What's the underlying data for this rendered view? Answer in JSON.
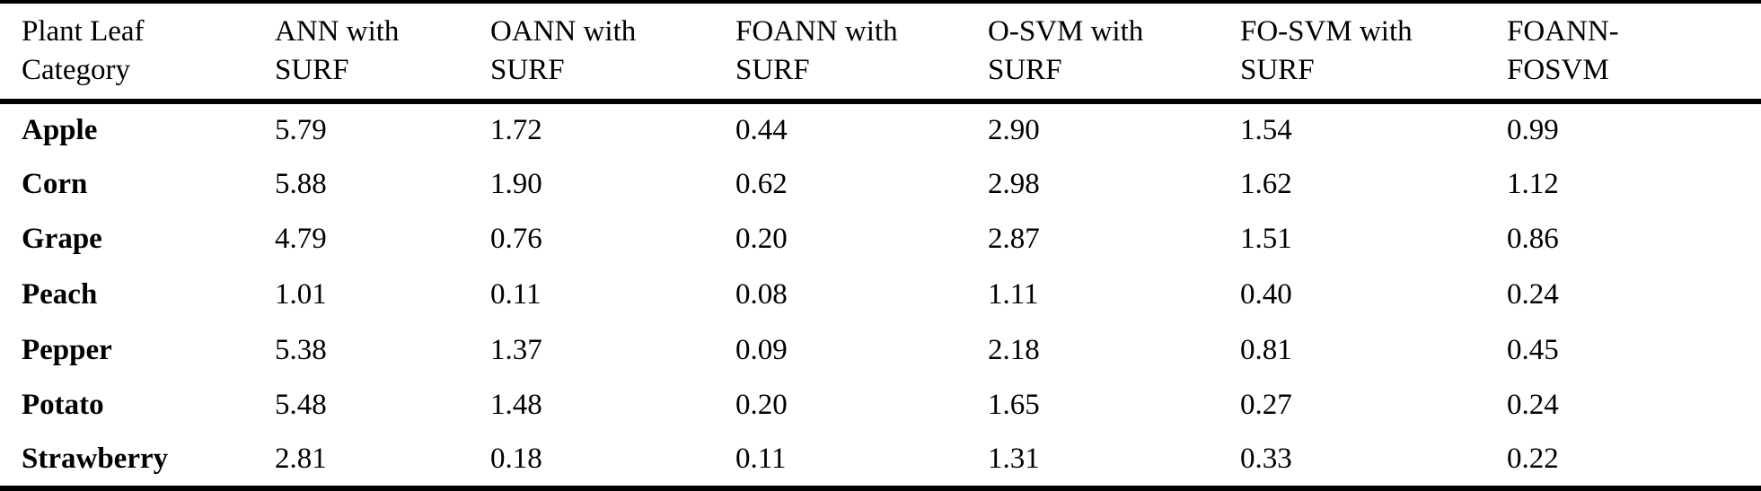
{
  "table": {
    "columns": [
      {
        "label": "Plant Leaf Category",
        "line1": "Plant Leaf",
        "line2": "Category"
      },
      {
        "label": "ANN with SURF",
        "line1": "ANN with",
        "line2": "SURF"
      },
      {
        "label": "OANN with SURF",
        "line1": "OANN with",
        "line2": "SURF"
      },
      {
        "label": "FOANN with SURF",
        "line1": "FOANN with",
        "line2": "SURF"
      },
      {
        "label": "O-SVM with SURF",
        "line1": "O-SVM with",
        "line2": "SURF"
      },
      {
        "label": "FO-SVM with SURF",
        "line1": "FO-SVM with",
        "line2": "SURF"
      },
      {
        "label": "FOANN-FOSVM",
        "line1": "FOANN-",
        "line2": "FOSVM"
      }
    ],
    "rows": [
      {
        "category": "Apple",
        "values": [
          "5.79",
          "1.72",
          "0.44",
          "2.90",
          "1.54",
          "0.99"
        ]
      },
      {
        "category": "Corn",
        "values": [
          "5.88",
          "1.90",
          "0.62",
          "2.98",
          "1.62",
          "1.12"
        ]
      },
      {
        "category": "Grape",
        "values": [
          "4.79",
          "0.76",
          "0.20",
          "2.87",
          "1.51",
          "0.86"
        ]
      },
      {
        "category": "Peach",
        "values": [
          "1.01",
          "0.11",
          "0.08",
          "1.11",
          "0.40",
          "0.24"
        ]
      },
      {
        "category": "Pepper",
        "values": [
          "5.38",
          "1.37",
          "0.09",
          "2.18",
          "0.81",
          "0.45"
        ]
      },
      {
        "category": "Potato",
        "values": [
          "5.48",
          "1.48",
          "0.20",
          "1.65",
          "0.27",
          "0.24"
        ]
      },
      {
        "category": "Strawberry",
        "values": [
          "2.81",
          "0.18",
          "0.11",
          "1.31",
          "0.33",
          "0.22"
        ]
      }
    ]
  },
  "chart_data": {
    "type": "table",
    "categories": [
      "Apple",
      "Corn",
      "Grape",
      "Peach",
      "Pepper",
      "Potato",
      "Strawberry"
    ],
    "series": [
      {
        "name": "ANN with SURF",
        "values": [
          5.79,
          5.88,
          4.79,
          1.01,
          5.38,
          5.48,
          2.81
        ]
      },
      {
        "name": "OANN with SURF",
        "values": [
          1.72,
          1.9,
          0.76,
          0.11,
          1.37,
          1.48,
          0.18
        ]
      },
      {
        "name": "FOANN with SURF",
        "values": [
          0.44,
          0.62,
          0.2,
          0.08,
          0.09,
          0.2,
          0.11
        ]
      },
      {
        "name": "O-SVM with SURF",
        "values": [
          2.9,
          2.98,
          2.87,
          1.11,
          2.18,
          1.65,
          1.31
        ]
      },
      {
        "name": "FO-SVM with SURF",
        "values": [
          1.54,
          1.62,
          1.51,
          0.4,
          0.81,
          0.27,
          0.33
        ]
      },
      {
        "name": "FOANN-FOSVM",
        "values": [
          0.99,
          1.12,
          0.86,
          0.24,
          0.45,
          0.24,
          0.22
        ]
      }
    ],
    "title": "",
    "xlabel": "Plant Leaf Category",
    "ylabel": ""
  }
}
